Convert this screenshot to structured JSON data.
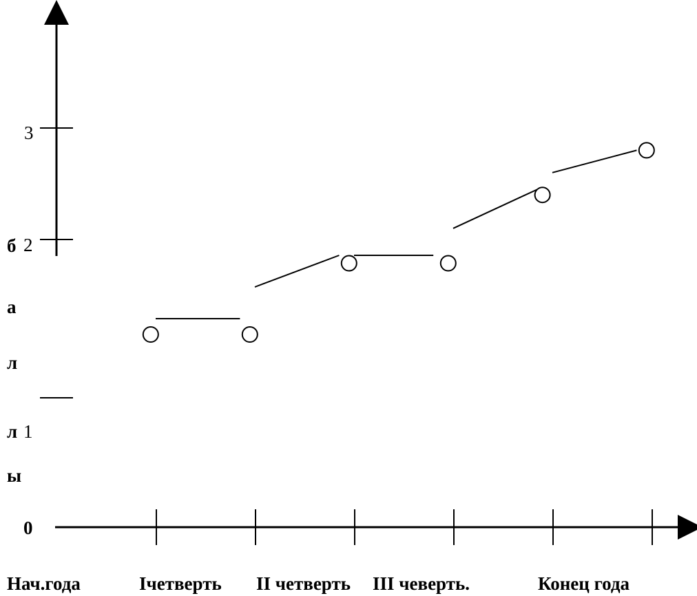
{
  "chart_data": {
    "type": "line",
    "ylabel": "баллы",
    "ylim": [
      0,
      3
    ],
    "yticks": [
      {
        "label": "0",
        "value": 0
      },
      {
        "label": "1",
        "value": 1
      },
      {
        "label": "2",
        "value": 2
      },
      {
        "label": "3",
        "value": 3
      }
    ],
    "ylabel_side_letters": [
      "б",
      "а",
      "л",
      "л",
      "ы"
    ],
    "categories": [
      "Нач.года",
      "Iчетверть",
      "II четверть",
      "III чеверть.",
      "Конец года"
    ],
    "points": [
      {
        "x": 0.95,
        "y": 1.4
      },
      {
        "x": 1.95,
        "y": 1.4
      },
      {
        "x": 2.95,
        "y": 1.85
      },
      {
        "x": 3.95,
        "y": 1.85
      },
      {
        "x": 4.9,
        "y": 2.4
      },
      {
        "x": 5.95,
        "y": 2.8
      }
    ],
    "segments": [
      {
        "x1": 1.0,
        "y1": 1.5,
        "x2": 1.85,
        "y2": 1.5
      },
      {
        "x1": 2.0,
        "y1": 1.7,
        "x2": 2.85,
        "y2": 1.9
      },
      {
        "x1": 3.0,
        "y1": 1.9,
        "x2": 3.8,
        "y2": 1.9
      },
      {
        "x1": 4.0,
        "y1": 2.1,
        "x2": 4.85,
        "y2": 2.45
      },
      {
        "x1": 5.0,
        "y1": 2.6,
        "x2": 5.85,
        "y2": 2.8
      }
    ],
    "grid": false,
    "legend": "none"
  }
}
